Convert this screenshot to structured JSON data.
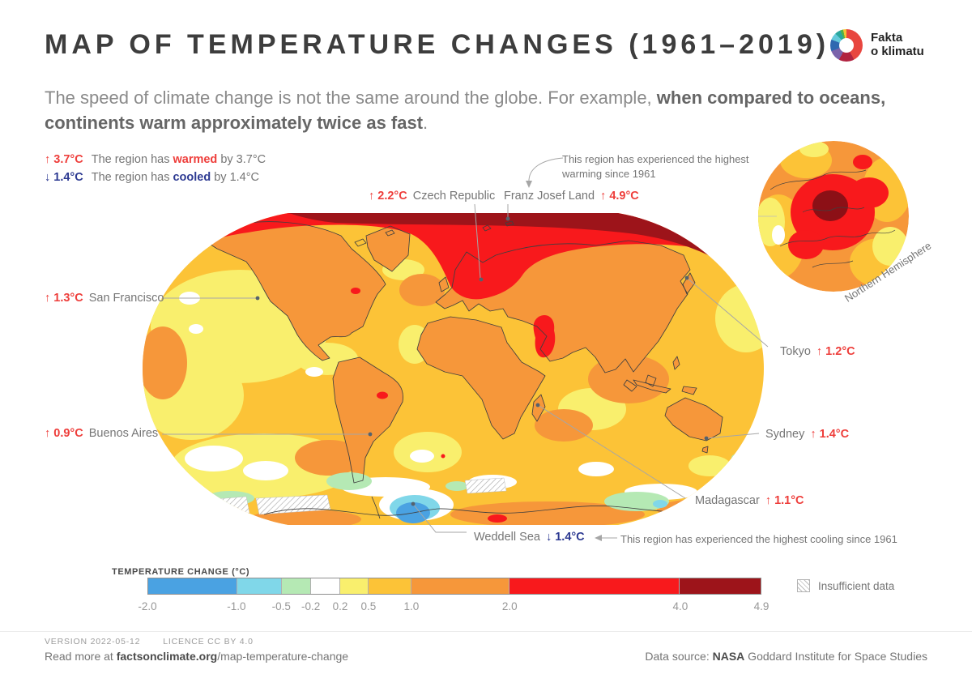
{
  "header": {
    "title": "MAP OF TEMPERATURE CHANGES (1961–2019)",
    "logo_line1": "Fakta",
    "logo_line2": "o klimatu"
  },
  "intro": {
    "regular": "The speed of climate change is not the same around the globe. For example, ",
    "bold": "when compared to oceans, continents warm approximately twice as fast",
    "period": "."
  },
  "key": {
    "warm_value": "↑ 3.7°C",
    "warm_pre": "The region has ",
    "warm_word": "warmed",
    "warm_post": " by 3.7°C",
    "cool_value": "↓ 1.4°C",
    "cool_pre": "The region has ",
    "cool_word": "cooled",
    "cool_post": " by 1.4°C"
  },
  "annotations": {
    "warming": "This region has experienced the highest warming since 1961",
    "cooling": "This region has experienced the highest cooling since 1961"
  },
  "labels": {
    "czech": {
      "value": "↑ 2.2°C",
      "name": "Czech Republic"
    },
    "franz": {
      "name": "Franz Josef Land",
      "value": "↑ 4.9°C"
    },
    "sf": {
      "value": "↑ 1.3°C",
      "name": "San Francisco"
    },
    "ba": {
      "value": "↑ 0.9°C",
      "name": "Buenos Aires"
    },
    "tokyo": {
      "name": "Tokyo",
      "value": "↑ 1.2°C"
    },
    "sydney": {
      "name": "Sydney",
      "value": "↑ 1.4°C"
    },
    "madagascar": {
      "name": "Madagascar",
      "value": "↑ 1.1°C"
    },
    "weddell": {
      "name": "Weddell Sea",
      "value": "↓ 1.4°C"
    }
  },
  "inset": {
    "label": "Northern Hemisphere"
  },
  "scale": {
    "title": "TEMPERATURE CHANGE (°C)",
    "segments": [
      {
        "color": "#4aa2e2",
        "width_pct": 14.5
      },
      {
        "color": "#80d7e9",
        "width_pct": 7.3
      },
      {
        "color": "#b5e9b4",
        "width_pct": 4.8
      },
      {
        "color": "#ffffff",
        "width_pct": 4.8
      },
      {
        "color": "#f9ef6d",
        "width_pct": 4.6
      },
      {
        "color": "#fcc337",
        "width_pct": 7.0
      },
      {
        "color": "#f6973a",
        "width_pct": 16.0
      },
      {
        "color": "#f8191c",
        "width_pct": 27.8
      },
      {
        "color": "#9d141a",
        "width_pct": 13.2
      }
    ],
    "ticks": [
      {
        "label": "-2.0",
        "pos_pct": 0
      },
      {
        "label": "-1.0",
        "pos_pct": 14.5
      },
      {
        "label": "-0.5",
        "pos_pct": 21.8
      },
      {
        "label": "-0.2",
        "pos_pct": 26.6
      },
      {
        "label": "0.2",
        "pos_pct": 31.4
      },
      {
        "label": "0.5",
        "pos_pct": 36.0
      },
      {
        "label": "1.0",
        "pos_pct": 43.0
      },
      {
        "label": "2.0",
        "pos_pct": 59.0
      },
      {
        "label": "4.0",
        "pos_pct": 86.8
      },
      {
        "label": "4.9",
        "pos_pct": 100
      }
    ],
    "insufficient_label": "Insufficient data"
  },
  "footer": {
    "version": "VERSION 2022-05-12",
    "licence": "LICENCE CC BY 4.0",
    "readmore_pre": "Read more at ",
    "readmore_bold": "factsonclimate.org",
    "readmore_post": "/map-temperature-change",
    "source_pre": "Data source: ",
    "source_bold": "NASA",
    "source_post": " Goddard Institute for Space Studies"
  },
  "chart_data": {
    "type": "heatmap",
    "title": "Map of temperature changes (1961–2019)",
    "unit": "°C",
    "projection": "Robinson world map + Northern Hemisphere inset globe",
    "scale_stops": [
      -2.0,
      -1.0,
      -0.5,
      -0.2,
      0.2,
      0.5,
      1.0,
      2.0,
      4.0,
      4.9
    ],
    "scale_colors": [
      "#4aa2e2",
      "#80d7e9",
      "#b5e9b4",
      "#ffffff",
      "#f9ef6d",
      "#fcc337",
      "#f6973a",
      "#f8191c",
      "#9d141a"
    ],
    "labeled_points": [
      {
        "name": "Franz Josef Land",
        "change_c": 4.9,
        "direction": "warmed",
        "note": "highest warming since 1961"
      },
      {
        "name": "Czech Republic",
        "change_c": 2.2,
        "direction": "warmed"
      },
      {
        "name": "San Francisco",
        "change_c": 1.3,
        "direction": "warmed"
      },
      {
        "name": "Tokyo",
        "change_c": 1.2,
        "direction": "warmed"
      },
      {
        "name": "Sydney",
        "change_c": 1.4,
        "direction": "warmed"
      },
      {
        "name": "Madagascar",
        "change_c": 1.1,
        "direction": "warmed"
      },
      {
        "name": "Buenos Aires",
        "change_c": 0.9,
        "direction": "warmed"
      },
      {
        "name": "Weddell Sea",
        "change_c": -1.4,
        "direction": "cooled",
        "note": "highest cooling since 1961"
      }
    ]
  }
}
